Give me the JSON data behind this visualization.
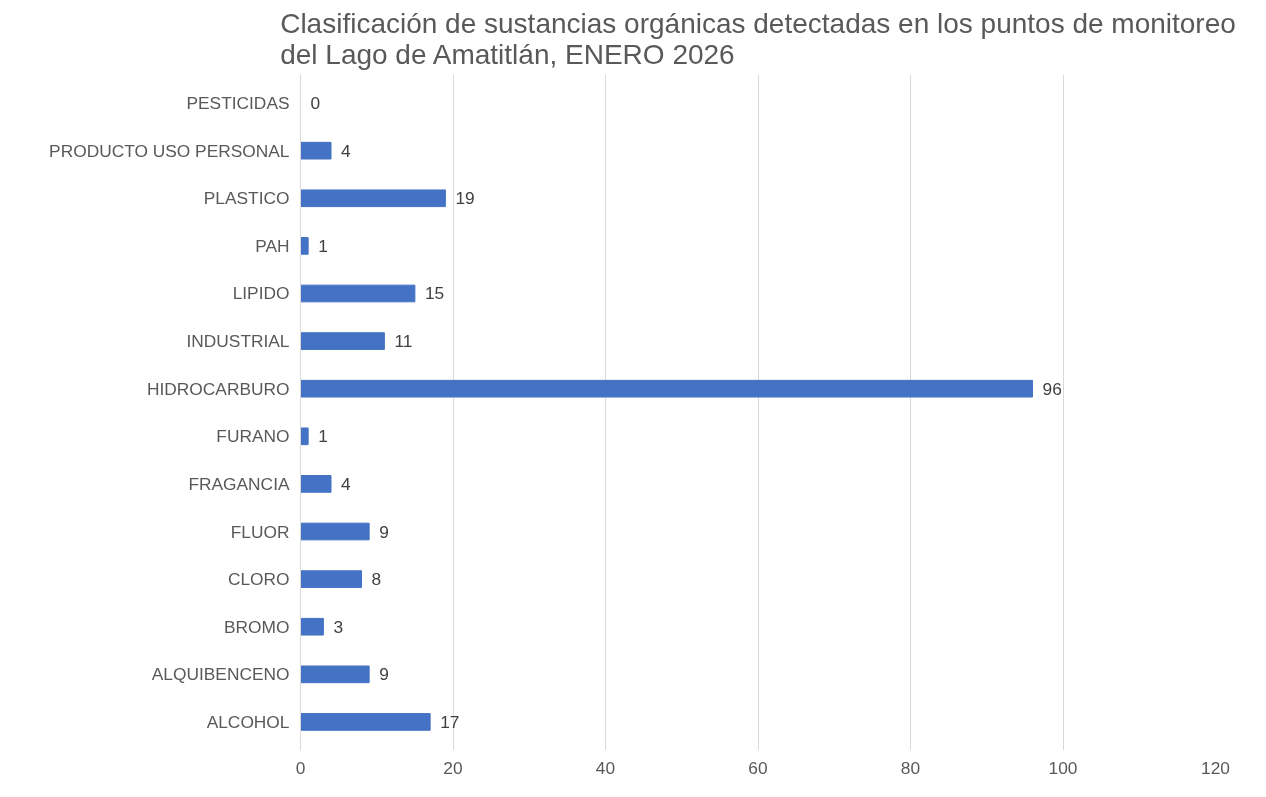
{
  "chart_data": {
    "type": "bar",
    "orientation": "horizontal",
    "title": "Clasificación de sustancias orgánicas detectadas en los puntos de monitoreo\ndel Lago de Amatitlán, ENERO 2026",
    "categories": [
      "PESTICIDAS",
      "PRODUCTO USO PERSONAL",
      "PLASTICO",
      "PAH",
      "LIPIDO",
      "INDUSTRIAL",
      "HIDROCARBURO",
      "FURANO",
      "FRAGANCIA",
      "FLUOR",
      "CLORO",
      "BROMO",
      "ALQUIBENCENO",
      "ALCOHOL"
    ],
    "values": [
      0,
      4,
      19,
      1,
      15,
      11,
      96,
      1,
      4,
      9,
      8,
      3,
      9,
      17
    ],
    "color": "#4472c4",
    "xlim": [
      0,
      120
    ],
    "xticks": [
      0,
      20,
      40,
      60,
      80,
      100,
      120
    ],
    "grid": "x",
    "data_labels": true
  }
}
